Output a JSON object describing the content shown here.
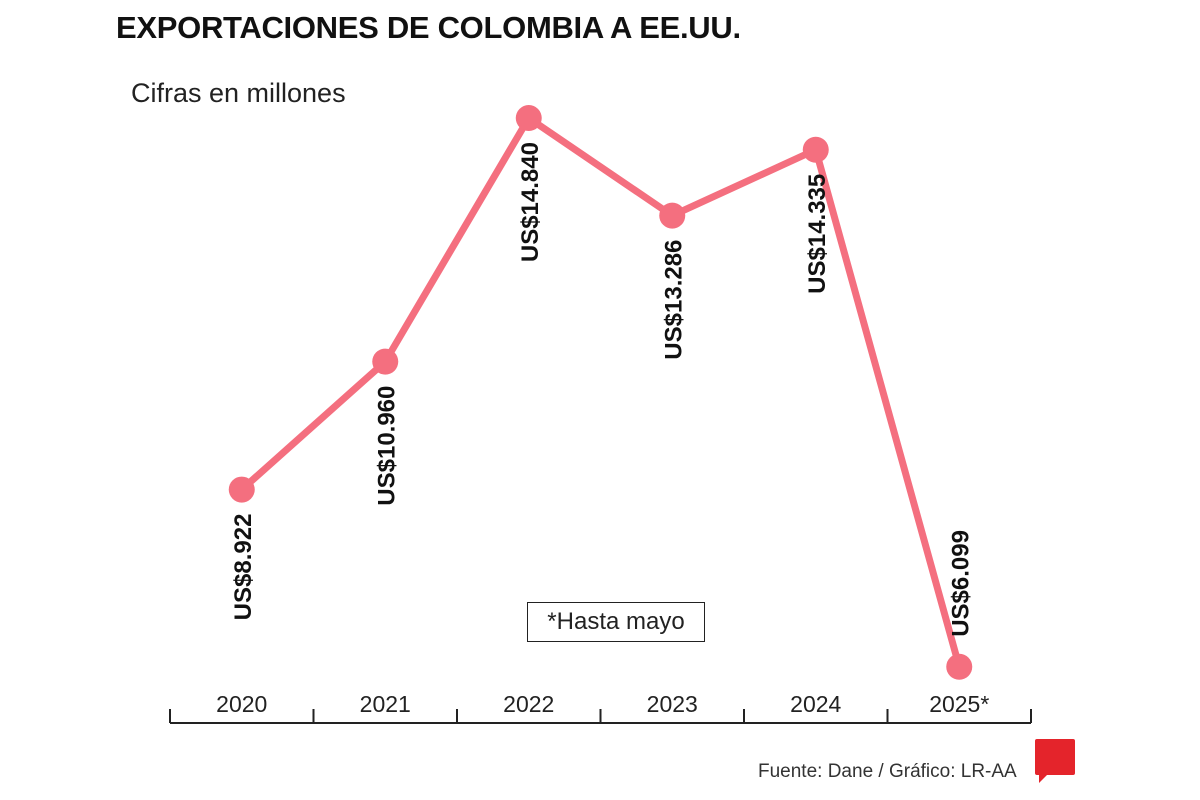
{
  "chart_data": {
    "type": "line",
    "title": "EXPORTACIONES DE COLOMBIA A EE.UU.",
    "subtitle": "Cifras en millones",
    "categories": [
      "2020",
      "2021",
      "2022",
      "2023",
      "2024",
      "2025*"
    ],
    "values": [
      8922,
      10960,
      14840,
      13286,
      14335,
      6099
    ],
    "data_labels": [
      "US$8.922",
      "US$10.960",
      "US$14.840",
      "US$13.286",
      "US$14.335",
      "US$6.099"
    ],
    "xlabel": "",
    "ylabel": "",
    "ylim": [
      6000,
      15000
    ],
    "grid": false,
    "note": "*Hasta mayo",
    "line_color": "#f46f7f"
  },
  "footer": {
    "source": "Fuente: Dane / Gráfico: LR-AA",
    "logo": "LR"
  }
}
